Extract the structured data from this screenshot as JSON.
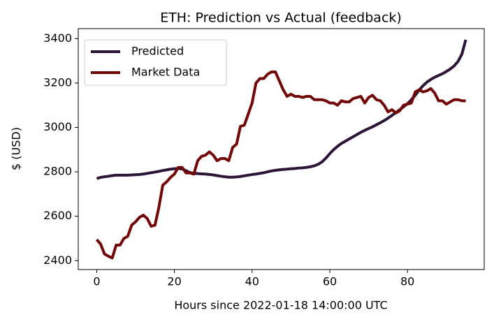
{
  "chart_data": {
    "type": "line",
    "title": "ETH: Prediction vs Actual (feedback)",
    "x_label": "Hours since 2022-01-18 14:00:00 UTC",
    "y_label": "$ (USD)",
    "x": [
      0,
      1,
      2,
      3,
      4,
      5,
      6,
      7,
      8,
      9,
      10,
      11,
      12,
      13,
      14,
      15,
      16,
      17,
      18,
      19,
      20,
      21,
      22,
      23,
      24,
      25,
      26,
      27,
      28,
      29,
      30,
      31,
      32,
      33,
      34,
      35,
      36,
      37,
      38,
      39,
      40,
      41,
      42,
      43,
      44,
      45,
      46,
      47,
      48,
      49,
      50,
      51,
      52,
      53,
      54,
      55,
      56,
      57,
      58,
      59,
      60,
      61,
      62,
      63,
      64,
      65,
      66,
      67,
      68,
      69,
      70,
      71,
      72,
      73,
      74,
      75,
      76,
      77,
      78,
      79,
      80,
      81,
      82,
      83,
      84,
      85,
      86,
      87,
      88,
      89,
      90,
      91,
      92,
      93,
      94,
      95
    ],
    "series": [
      {
        "name": "Predicted",
        "color": "#2d1537",
        "values": [
          2770,
          2775,
          2778,
          2780,
          2783,
          2785,
          2785,
          2785,
          2785,
          2786,
          2787,
          2788,
          2790,
          2793,
          2796,
          2799,
          2802,
          2806,
          2809,
          2812,
          2814,
          2815,
          2813,
          2805,
          2797,
          2793,
          2792,
          2791,
          2790,
          2788,
          2786,
          2783,
          2780,
          2778,
          2776,
          2776,
          2777,
          2779,
          2782,
          2785,
          2788,
          2790,
          2793,
          2796,
          2800,
          2804,
          2807,
          2809,
          2811,
          2812,
          2814,
          2815,
          2817,
          2818,
          2820,
          2823,
          2827,
          2834,
          2845,
          2862,
          2882,
          2900,
          2915,
          2928,
          2938,
          2948,
          2958,
          2968,
          2978,
          2987,
          2995,
          3003,
          3012,
          3021,
          3031,
          3042,
          3054,
          3067,
          3080,
          3093,
          3107,
          3125,
          3145,
          3168,
          3188,
          3204,
          3216,
          3226,
          3234,
          3242,
          3252,
          3263,
          3277,
          3297,
          3330,
          3395
        ]
      },
      {
        "name": "Market Data",
        "color": "#720808",
        "values": [
          2495,
          2475,
          2430,
          2420,
          2412,
          2470,
          2470,
          2500,
          2510,
          2560,
          2575,
          2595,
          2605,
          2590,
          2555,
          2560,
          2640,
          2740,
          2755,
          2775,
          2790,
          2820,
          2820,
          2795,
          2795,
          2790,
          2850,
          2870,
          2875,
          2890,
          2875,
          2850,
          2860,
          2860,
          2850,
          2910,
          2925,
          3005,
          3010,
          3060,
          3110,
          3200,
          3220,
          3220,
          3240,
          3250,
          3250,
          3210,
          3170,
          3140,
          3150,
          3140,
          3140,
          3135,
          3140,
          3140,
          3125,
          3125,
          3125,
          3120,
          3110,
          3110,
          3100,
          3120,
          3115,
          3115,
          3130,
          3135,
          3140,
          3110,
          3135,
          3145,
          3125,
          3120,
          3100,
          3070,
          3080,
          3065,
          3075,
          3100,
          3105,
          3110,
          3160,
          3170,
          3160,
          3165,
          3175,
          3155,
          3120,
          3120,
          3105,
          3115,
          3125,
          3125,
          3120,
          3120
        ]
      }
    ],
    "xlim": [
      -4.75,
      99.75
    ],
    "xticks": [
      0,
      20,
      40,
      60,
      80
    ],
    "ylim": [
      2360,
      3445
    ],
    "yticks": [
      2400,
      2600,
      2800,
      3000,
      3200,
      3400
    ],
    "legend": "upper left"
  }
}
